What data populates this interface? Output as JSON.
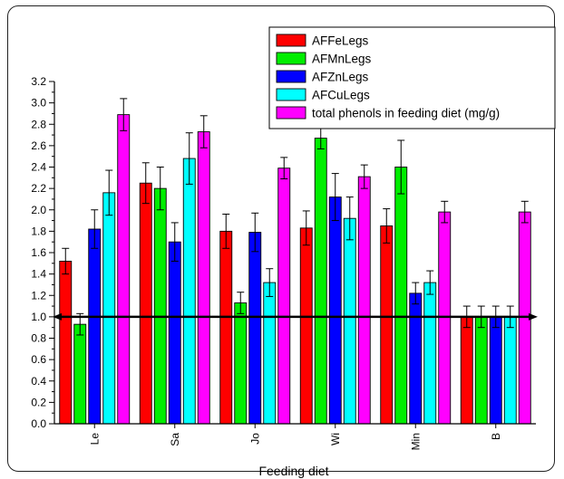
{
  "chart_data": {
    "type": "bar",
    "title": "",
    "xlabel": "Feeding diet",
    "ylabel": "",
    "ylim": [
      0,
      3.2
    ],
    "yticks": [
      "0.0",
      "0.2",
      "0.4",
      "0.6",
      "0.8",
      "1.0",
      "1.2",
      "1.4",
      "1.6",
      "1.8",
      "2.0",
      "2.2",
      "2.4",
      "2.6",
      "2.8",
      "3.0",
      "3.2"
    ],
    "categories": [
      "Le",
      "Sa",
      "Jo",
      "Wi",
      "Min",
      "B"
    ],
    "reference_line": 1.0,
    "legend_position": "top-right",
    "series": [
      {
        "name": "AFFeLegs",
        "color": "#ff0000",
        "values": [
          1.52,
          2.25,
          1.8,
          1.83,
          1.85,
          1.0
        ],
        "errors": [
          0.12,
          0.19,
          0.16,
          0.16,
          0.16,
          0.1
        ]
      },
      {
        "name": "AFMnLegs",
        "color": "#00ee00",
        "values": [
          0.93,
          2.2,
          1.13,
          2.67,
          2.4,
          1.0
        ],
        "errors": [
          0.1,
          0.2,
          0.1,
          0.1,
          0.25,
          0.1
        ]
      },
      {
        "name": "AFZnLegs",
        "color": "#0000ff",
        "values": [
          1.82,
          1.7,
          1.79,
          2.12,
          1.22,
          1.0
        ],
        "errors": [
          0.18,
          0.18,
          0.18,
          0.22,
          0.1,
          0.1
        ]
      },
      {
        "name": "AFCuLegs",
        "color": "#00ffff",
        "values": [
          2.16,
          2.48,
          1.32,
          1.92,
          1.32,
          1.0
        ],
        "errors": [
          0.21,
          0.24,
          0.13,
          0.2,
          0.11,
          0.1
        ]
      },
      {
        "name": "total phenols in feeding diet (mg/g)",
        "color": "#ff00ff",
        "values": [
          2.89,
          2.73,
          2.39,
          2.31,
          1.98,
          1.98
        ],
        "errors": [
          0.15,
          0.15,
          0.1,
          0.11,
          0.1,
          0.1
        ]
      }
    ]
  }
}
